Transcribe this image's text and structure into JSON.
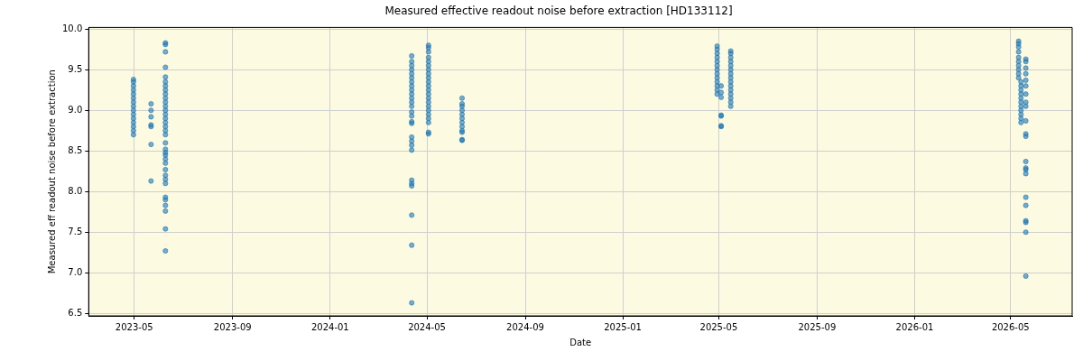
{
  "chart_data": {
    "type": "scatter",
    "title": "Measured effective readout noise before extraction [HD133112]",
    "xlabel": "Date",
    "ylabel": "Measured eff readout noise before extraction",
    "xlim": [
      "2023-03-05",
      "2026-07-17"
    ],
    "ylim": [
      6.47,
      10.02
    ],
    "xticks": [
      {
        "value": "2023-05-01",
        "label": "2023-05"
      },
      {
        "value": "2023-09-01",
        "label": "2023-09"
      },
      {
        "value": "2024-01-01",
        "label": "2024-01"
      },
      {
        "value": "2024-05-01",
        "label": "2024-05"
      },
      {
        "value": "2024-09-01",
        "label": "2024-09"
      },
      {
        "value": "2025-01-01",
        "label": "2025-01"
      },
      {
        "value": "2025-05-01",
        "label": "2025-05"
      },
      {
        "value": "2025-09-01",
        "label": "2025-09"
      },
      {
        "value": "2026-01-01",
        "label": "2026-01"
      },
      {
        "value": "2026-05-01",
        "label": "2026-05"
      }
    ],
    "yticks": [
      {
        "value": 6.5,
        "label": "6.5"
      },
      {
        "value": 7,
        "label": "7.0"
      },
      {
        "value": 7.5,
        "label": "7.5"
      },
      {
        "value": 8,
        "label": "8.0"
      },
      {
        "value": 8.5,
        "label": "8.5"
      },
      {
        "value": 9,
        "label": "9.0"
      },
      {
        "value": 9.5,
        "label": "9.5"
      },
      {
        "value": 10,
        "label": "10.0"
      }
    ],
    "grid": true,
    "legend": false,
    "marker": "circle",
    "series": [
      {
        "color": "#1f77b4",
        "x": [
          "2023-04-30",
          "2023-04-30",
          "2023-04-30",
          "2023-04-30",
          "2023-04-30",
          "2023-04-30",
          "2023-04-30",
          "2023-04-30",
          "2023-04-30",
          "2023-04-30",
          "2023-04-30",
          "2023-04-30",
          "2023-04-30",
          "2023-04-30",
          "2023-04-30",
          "2023-05-22",
          "2023-05-22",
          "2023-05-22",
          "2023-05-22",
          "2023-05-22",
          "2023-05-22",
          "2023-05-22",
          "2023-06-09",
          "2023-06-09",
          "2023-06-09",
          "2023-06-09",
          "2023-06-09",
          "2023-06-09",
          "2023-06-09",
          "2023-06-09",
          "2023-06-09",
          "2023-06-09",
          "2023-06-09",
          "2023-06-09",
          "2023-06-09",
          "2023-06-09",
          "2023-06-09",
          "2023-06-09",
          "2023-06-09",
          "2023-06-09",
          "2023-06-09",
          "2023-06-09",
          "2023-06-09",
          "2023-06-09",
          "2023-06-09",
          "2023-06-09",
          "2023-06-09",
          "2023-06-09",
          "2023-06-09",
          "2023-06-09",
          "2023-06-09",
          "2023-06-09",
          "2023-06-09",
          "2023-06-09",
          "2023-06-09",
          "2023-06-09",
          "2023-06-09",
          "2024-04-12",
          "2024-04-12",
          "2024-04-12",
          "2024-04-12",
          "2024-04-12",
          "2024-04-12",
          "2024-04-12",
          "2024-04-12",
          "2024-04-12",
          "2024-04-12",
          "2024-04-12",
          "2024-04-12",
          "2024-04-12",
          "2024-04-12",
          "2024-04-12",
          "2024-04-12",
          "2024-04-12",
          "2024-04-12",
          "2024-04-12",
          "2024-04-12",
          "2024-04-12",
          "2024-04-12",
          "2024-04-12",
          "2024-04-12",
          "2024-04-12",
          "2024-04-12",
          "2024-04-12",
          "2024-05-03",
          "2024-05-03",
          "2024-05-03",
          "2024-05-03",
          "2024-05-03",
          "2024-05-03",
          "2024-05-03",
          "2024-05-03",
          "2024-05-03",
          "2024-05-03",
          "2024-05-03",
          "2024-05-03",
          "2024-05-03",
          "2024-05-03",
          "2024-05-03",
          "2024-05-03",
          "2024-05-03",
          "2024-05-03",
          "2024-05-03",
          "2024-05-03",
          "2024-05-03",
          "2024-05-03",
          "2024-06-14",
          "2024-06-14",
          "2024-06-14",
          "2024-06-14",
          "2024-06-14",
          "2024-06-14",
          "2024-06-14",
          "2024-06-14",
          "2024-06-14",
          "2024-06-14",
          "2024-06-14",
          "2024-06-14",
          "2025-04-29",
          "2025-04-29",
          "2025-04-29",
          "2025-04-29",
          "2025-04-29",
          "2025-04-29",
          "2025-04-29",
          "2025-04-29",
          "2025-04-29",
          "2025-04-29",
          "2025-04-29",
          "2025-04-29",
          "2025-04-29",
          "2025-05-04",
          "2025-05-04",
          "2025-05-04",
          "2025-05-04",
          "2025-05-04",
          "2025-05-04",
          "2025-05-04",
          "2025-05-16",
          "2025-05-16",
          "2025-05-16",
          "2025-05-16",
          "2025-05-16",
          "2025-05-16",
          "2025-05-16",
          "2025-05-16",
          "2025-05-16",
          "2025-05-16",
          "2025-05-16",
          "2025-05-16",
          "2025-05-16",
          "2025-05-16",
          "2025-05-16",
          "2026-05-11",
          "2026-05-11",
          "2026-05-11",
          "2026-05-11",
          "2026-05-11",
          "2026-05-11",
          "2026-05-11",
          "2026-05-11",
          "2026-05-11",
          "2026-05-11",
          "2026-05-14",
          "2026-05-14",
          "2026-05-14",
          "2026-05-14",
          "2026-05-14",
          "2026-05-14",
          "2026-05-14",
          "2026-05-14",
          "2026-05-14",
          "2026-05-14",
          "2026-05-14",
          "2026-05-20",
          "2026-05-20",
          "2026-05-20",
          "2026-05-20",
          "2026-05-20",
          "2026-05-20",
          "2026-05-20",
          "2026-05-20",
          "2026-05-20",
          "2026-05-20",
          "2026-05-20",
          "2026-05-20",
          "2026-05-20",
          "2026-05-20",
          "2026-05-20",
          "2026-05-20",
          "2026-05-20",
          "2026-05-20",
          "2026-05-20",
          "2026-05-20",
          "2026-05-20",
          "2026-05-20"
        ],
        "values": [
          9.38,
          9.35,
          9.3,
          9.25,
          9.2,
          9.15,
          9.1,
          9.05,
          9.0,
          8.95,
          8.9,
          8.85,
          8.8,
          8.75,
          8.7,
          9.08,
          9.0,
          8.92,
          8.82,
          8.8,
          8.58,
          8.13,
          9.83,
          9.81,
          9.72,
          9.53,
          9.41,
          9.35,
          9.3,
          9.25,
          9.2,
          9.15,
          9.1,
          9.05,
          9.0,
          8.95,
          8.9,
          8.85,
          8.8,
          8.75,
          8.7,
          8.6,
          8.52,
          8.48,
          8.45,
          8.4,
          8.35,
          8.27,
          8.2,
          8.15,
          8.1,
          7.93,
          7.9,
          7.83,
          7.76,
          7.54,
          7.27,
          9.67,
          9.6,
          9.55,
          9.5,
          9.45,
          9.4,
          9.35,
          9.3,
          9.25,
          9.2,
          9.15,
          9.1,
          9.05,
          8.98,
          8.93,
          8.86,
          8.84,
          8.67,
          8.62,
          8.57,
          8.51,
          8.14,
          8.1,
          8.07,
          7.71,
          7.34,
          6.63,
          9.8,
          9.77,
          9.72,
          9.65,
          9.6,
          9.55,
          9.5,
          9.45,
          9.4,
          9.35,
          9.3,
          9.25,
          9.2,
          9.15,
          9.1,
          9.05,
          9.0,
          8.95,
          8.9,
          8.85,
          8.73,
          8.71,
          9.15,
          9.08,
          9.05,
          9.0,
          8.95,
          8.9,
          8.85,
          8.8,
          8.75,
          8.73,
          8.64,
          8.63,
          9.79,
          9.75,
          9.7,
          9.65,
          9.6,
          9.55,
          9.5,
          9.45,
          9.4,
          9.35,
          9.3,
          9.25,
          9.2,
          9.3,
          9.22,
          9.16,
          8.94,
          8.93,
          8.81,
          8.8,
          9.73,
          9.7,
          9.65,
          9.6,
          9.55,
          9.5,
          9.45,
          9.4,
          9.35,
          9.3,
          9.25,
          9.2,
          9.15,
          9.1,
          9.05,
          9.85,
          9.82,
          9.78,
          9.72,
          9.65,
          9.6,
          9.55,
          9.5,
          9.45,
          9.4,
          9.35,
          9.3,
          9.25,
          9.2,
          9.15,
          9.1,
          9.05,
          9.0,
          8.95,
          8.9,
          8.85,
          9.63,
          9.6,
          9.52,
          9.45,
          9.37,
          9.3,
          9.2,
          9.1,
          9.05,
          8.87,
          8.71,
          8.68,
          8.37,
          8.29,
          8.27,
          8.22,
          7.93,
          7.83,
          7.64,
          7.62,
          7.5,
          6.96
        ]
      }
    ]
  }
}
